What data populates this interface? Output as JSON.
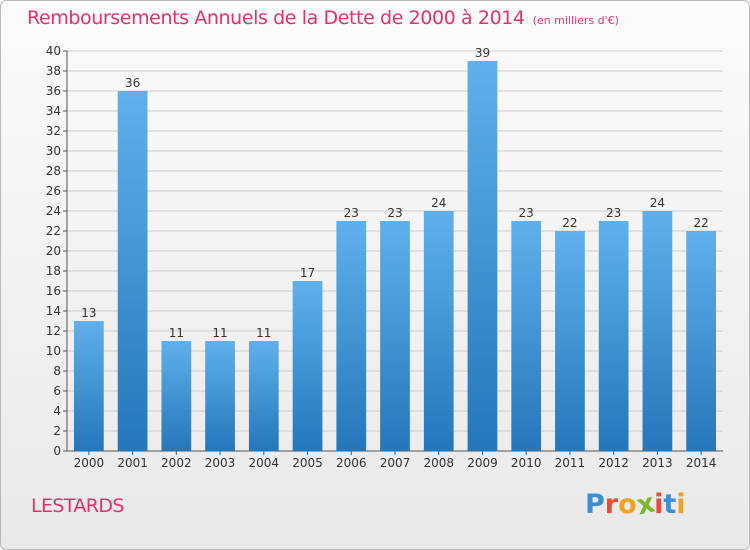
{
  "header": {
    "title": "Remboursements Annuels de la Dette de 2000 à 2014",
    "subtitle": "(en milliers d'€)"
  },
  "footer": {
    "commune": "LESTARDS",
    "logo": {
      "text": "Proxiti",
      "letter_colors": [
        "#3a8fd6",
        "#e84c3d",
        "#f0a11d",
        "#7ab72d",
        "#e84c3d",
        "#3a8fd6",
        "#f0a11d"
      ]
    }
  },
  "colors": {
    "bar_light": "#5fb0ec",
    "bar_dark": "#2477b9",
    "grid": "#cccccc",
    "title": "#e0336a"
  },
  "chart_data": {
    "type": "bar",
    "title": "Remboursements Annuels de la Dette de 2000 à 2014",
    "subtitle": "(en milliers d'€)",
    "categories": [
      "2000",
      "2001",
      "2002",
      "2003",
      "2004",
      "2005",
      "2006",
      "2007",
      "2008",
      "2009",
      "2010",
      "2011",
      "2012",
      "2013",
      "2014"
    ],
    "values": [
      13,
      36,
      11,
      11,
      11,
      17,
      23,
      23,
      24,
      39,
      23,
      22,
      23,
      24,
      22
    ],
    "ylim": [
      0,
      40
    ],
    "ytick_step": 2,
    "grid": true,
    "data_labels": true
  }
}
